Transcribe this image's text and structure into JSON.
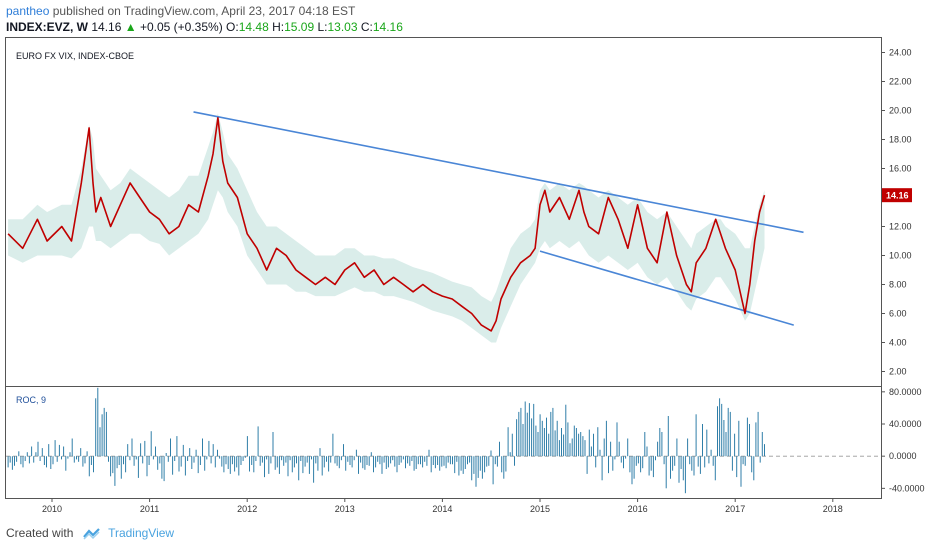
{
  "header": {
    "user": "pantheo",
    "published_text": "published on TradingView.com, April 23, 2017 04:18 EST",
    "symbol": "INDEX:EVZ, W",
    "last": "14.16",
    "change": "+0.05 (+0.35%)",
    "open_label": "O:",
    "open": "14.48",
    "high_label": "H:",
    "high": "15.09",
    "low_label": "L:",
    "low": "13.03",
    "close_label": "C:",
    "close": "14.16"
  },
  "footer": {
    "created_with": "Created with",
    "brand": "TradingView"
  },
  "colors": {
    "price": "#c00000",
    "band": "#d6ebe8",
    "trend": "#4a86d6",
    "roc": "#2f7ea8",
    "price_badge": "#c00000"
  },
  "chart_data": [
    {
      "type": "line",
      "title": "EURO FX VIX, INDEX-CBOE",
      "ylim": [
        1,
        25
      ],
      "y_ticks": [
        "24.00",
        "22.00",
        "20.00",
        "18.00",
        "16.00",
        "14.00",
        "12.00",
        "10.00",
        "8.00",
        "6.00",
        "4.00",
        "2.00"
      ],
      "x_ticks": [
        "2010",
        "2011",
        "2012",
        "2013",
        "2014",
        "2015",
        "2016",
        "2017",
        "2018"
      ],
      "last_price_label": "14.16",
      "series": [
        {
          "values_x": [
            2009.55,
            2009.7,
            2009.85,
            2009.95,
            2010.1,
            2010.2,
            2010.3,
            2010.38,
            2010.42,
            2010.45,
            2010.5,
            2010.6,
            2010.7,
            2010.8,
            2010.9,
            2011.0,
            2011.1,
            2011.2,
            2011.3,
            2011.4,
            2011.5,
            2011.6,
            2011.65,
            2011.7,
            2011.75,
            2011.8,
            2011.9,
            2012.0,
            2012.1,
            2012.2,
            2012.3,
            2012.4,
            2012.5,
            2012.6,
            2012.7,
            2012.8,
            2012.9,
            2013.0,
            2013.1,
            2013.2,
            2013.3,
            2013.4,
            2013.5,
            2013.6,
            2013.7,
            2013.8,
            2013.9,
            2014.0,
            2014.1,
            2014.2,
            2014.3,
            2014.4,
            2014.5,
            2014.55,
            2014.6,
            2014.7,
            2014.8,
            2014.9,
            2014.95,
            2015.0,
            2015.05,
            2015.1,
            2015.2,
            2015.3,
            2015.4,
            2015.45,
            2015.5,
            2015.6,
            2015.7,
            2015.8,
            2015.9,
            2016.0,
            2016.1,
            2016.2,
            2016.3,
            2016.4,
            2016.45,
            2016.5,
            2016.55,
            2016.6,
            2016.7,
            2016.8,
            2016.85,
            2016.9,
            2017.0,
            2017.1,
            2017.15,
            2017.2,
            2017.25,
            2017.3
          ],
          "values": [
            11.5,
            10.5,
            12.5,
            11.0,
            12.0,
            11.0,
            15.0,
            18.8,
            15.0,
            13.0,
            14.0,
            12.0,
            13.5,
            15.0,
            14.0,
            13.0,
            12.5,
            11.5,
            12.0,
            13.5,
            13.0,
            15.5,
            17.0,
            19.5,
            16.5,
            15.0,
            14.0,
            11.5,
            10.5,
            9.0,
            10.5,
            10.0,
            9.0,
            8.5,
            8.0,
            8.5,
            8.0,
            9.0,
            9.5,
            8.5,
            9.0,
            8.0,
            8.5,
            8.0,
            7.5,
            8.0,
            7.5,
            7.2,
            7.0,
            6.5,
            6.0,
            5.2,
            4.8,
            5.5,
            7.0,
            8.5,
            9.5,
            10.0,
            10.5,
            13.5,
            14.5,
            13.0,
            14.0,
            12.5,
            14.5,
            13.0,
            12.0,
            11.5,
            14.0,
            12.5,
            10.5,
            13.5,
            10.5,
            9.5,
            13.0,
            10.0,
            9.0,
            8.0,
            7.5,
            9.5,
            10.5,
            12.5,
            11.5,
            10.5,
            9.0,
            6.0,
            8.0,
            11.0,
            13.0,
            14.16
          ],
          "band_upper": [
            12.5,
            12.5,
            13.5,
            13.0,
            13.5,
            13.5,
            16.0,
            19.0,
            18.0,
            16.0,
            15.5,
            14.5,
            15.0,
            16.0,
            15.5,
            15.0,
            14.5,
            14.0,
            14.5,
            15.5,
            15.5,
            17.5,
            18.5,
            19.8,
            18.5,
            17.0,
            16.0,
            14.5,
            13.0,
            12.0,
            12.0,
            11.5,
            11.0,
            10.5,
            10.0,
            10.0,
            10.0,
            10.5,
            10.5,
            10.0,
            10.0,
            9.8,
            9.8,
            9.5,
            9.2,
            9.0,
            8.8,
            8.5,
            8.2,
            8.0,
            7.8,
            7.2,
            6.8,
            7.5,
            8.5,
            10.5,
            11.5,
            12.0,
            12.5,
            14.5,
            15.0,
            14.5,
            15.0,
            14.5,
            15.0,
            14.8,
            14.5,
            14.0,
            14.5,
            14.0,
            13.5,
            14.0,
            13.0,
            12.5,
            13.0,
            12.0,
            11.5,
            11.0,
            10.5,
            11.5,
            12.0,
            12.5,
            12.5,
            12.0,
            11.5,
            10.5,
            10.5,
            12.0,
            13.5,
            14.5
          ],
          "band_lower": [
            10.0,
            9.5,
            10.0,
            10.0,
            10.0,
            9.8,
            10.5,
            12.0,
            12.0,
            11.0,
            11.0,
            10.5,
            11.0,
            11.5,
            11.5,
            11.0,
            10.8,
            10.0,
            10.5,
            11.0,
            11.5,
            12.5,
            13.5,
            14.5,
            14.0,
            13.0,
            12.0,
            10.0,
            9.0,
            8.0,
            8.0,
            8.0,
            7.5,
            7.5,
            7.2,
            7.2,
            7.2,
            7.5,
            7.8,
            7.5,
            7.5,
            7.2,
            7.2,
            7.0,
            6.8,
            6.5,
            6.2,
            6.0,
            5.8,
            5.5,
            5.0,
            4.5,
            4.0,
            4.0,
            5.0,
            6.5,
            8.0,
            9.0,
            9.5,
            10.5,
            11.0,
            10.5,
            11.0,
            10.5,
            11.0,
            10.5,
            10.0,
            9.5,
            10.0,
            9.5,
            9.0,
            9.5,
            8.5,
            8.0,
            8.5,
            7.5,
            7.0,
            6.5,
            6.2,
            7.0,
            7.5,
            8.5,
            8.5,
            8.0,
            7.0,
            5.5,
            6.0,
            7.5,
            9.0,
            10.5
          ]
        }
      ],
      "trendlines": [
        {
          "x": [
            2011.45,
            2017.7
          ],
          "y": [
            19.9,
            11.6
          ]
        },
        {
          "x": [
            2015.0,
            2017.6
          ],
          "y": [
            10.3,
            5.2
          ]
        }
      ]
    },
    {
      "type": "bar",
      "title": "ROC, 9",
      "ylim": [
        -52,
        86
      ],
      "y_ticks": [
        "80.0000",
        "40.0000",
        "0.0000",
        "-40.0000"
      ],
      "x_start": 2009.55,
      "x_end": 2017.3,
      "values": [
        -14,
        -8,
        -17,
        -12,
        -7,
        6,
        -10,
        -14,
        -6,
        5,
        -9,
        12,
        -8,
        5,
        18,
        -6,
        10,
        -11,
        -14,
        15,
        -16,
        -10,
        20,
        -7,
        14,
        -4,
        12,
        -18,
        -3,
        5,
        22,
        -8,
        -4,
        -7,
        10,
        -13,
        -9,
        6,
        -25,
        -11,
        -20,
        72,
        85,
        36,
        52,
        60,
        55,
        -7,
        -25,
        -21,
        -37,
        -15,
        -11,
        -28,
        -10,
        -20,
        15,
        -5,
        22,
        -12,
        -4,
        -27,
        16,
        -9,
        19,
        -25,
        -11,
        31,
        -4,
        12,
        -17,
        -9,
        -28,
        -31,
        4,
        -7,
        22,
        -23,
        -6,
        25,
        -19,
        -13,
        14,
        -24,
        -6,
        10,
        -16,
        -8,
        8,
        -21,
        -11,
        22,
        -18,
        -4,
        19,
        -9,
        15,
        -14,
        8,
        -3,
        -13,
        -20,
        -10,
        -16,
        -22,
        -10,
        -19,
        -14,
        -24,
        -11,
        -6,
        -2,
        25,
        -19,
        -11,
        -20,
        -6,
        37,
        -12,
        -8,
        -26,
        -4,
        -22,
        -9,
        30,
        -17,
        -14,
        -22,
        -5,
        -12,
        -8,
        -25,
        -5,
        -20,
        -14,
        -9,
        -30,
        -6,
        -21,
        -13,
        -8,
        -22,
        -4,
        -33,
        -9,
        -18,
        10,
        -24,
        -14,
        -7,
        -19,
        -8,
        28,
        -9,
        -12,
        -15,
        -5,
        15,
        -18,
        -7,
        -11,
        -14,
        -5,
        8,
        -22,
        -8,
        -15,
        -17,
        -11,
        -12,
        5,
        -20,
        -14,
        -7,
        -10,
        -22,
        -8,
        -16,
        -14,
        -9,
        -5,
        -13,
        -20,
        -11,
        -8,
        -4,
        -15,
        -9,
        -12,
        -6,
        -18,
        -16,
        -10,
        -10,
        -14,
        -7,
        -12,
        8,
        -20,
        -11,
        -15,
        -11,
        -18,
        -13,
        -12,
        -15,
        -8,
        -10,
        -10,
        -21,
        -7,
        -24,
        -18,
        -22,
        -16,
        -10,
        -8,
        -30,
        -22,
        -38,
        -27,
        -18,
        -28,
        -20,
        -13,
        -12,
        7,
        -35,
        -10,
        -13,
        18,
        -20,
        -28,
        -19,
        36,
        5,
        28,
        -12,
        46,
        55,
        60,
        40,
        68,
        54,
        66,
        47,
        65,
        38,
        30,
        52,
        44,
        35,
        48,
        28,
        55,
        60,
        32,
        44,
        20,
        35,
        27,
        64,
        42,
        16,
        22,
        38,
        35,
        28,
        30,
        25,
        20,
        -22,
        33,
        12,
        28,
        -14,
        36,
        8,
        -30,
        22,
        44,
        -21,
        18,
        -18,
        -4,
        42,
        18,
        -8,
        -15,
        -3,
        22,
        -20,
        -35,
        -28,
        -12,
        -9,
        -20,
        -15,
        30,
        12,
        -24,
        -18,
        -26,
        -5,
        18,
        35,
        30,
        -10,
        -40,
        50,
        -28,
        -18,
        -12,
        22,
        -33,
        -16,
        -30,
        -46,
        22,
        -10,
        -18,
        -24,
        52,
        -13,
        -22,
        40,
        -14,
        33,
        -9,
        8,
        -12,
        -30,
        62,
        72,
        65,
        45,
        30,
        60,
        55,
        -18,
        28,
        -26,
        44,
        -38,
        -10,
        -12,
        48,
        40,
        -20,
        -30,
        42,
        55,
        -8,
        30,
        15
      ]
    }
  ]
}
